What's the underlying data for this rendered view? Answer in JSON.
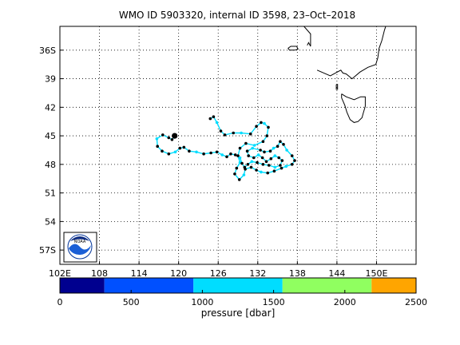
{
  "figure": {
    "title": "WMO ID 5903320, internal ID 3598, 23–Oct–2018"
  },
  "map": {
    "lon_range": [
      102,
      156
    ],
    "lat_range": [
      -58.5,
      -33.5
    ],
    "x_ticks": [
      {
        "value": 102,
        "label": "102E"
      },
      {
        "value": 108,
        "label": "108"
      },
      {
        "value": 114,
        "label": "114"
      },
      {
        "value": 120,
        "label": "120"
      },
      {
        "value": 126,
        "label": "126"
      },
      {
        "value": 132,
        "label": "132"
      },
      {
        "value": 138,
        "label": "138"
      },
      {
        "value": 144,
        "label": "144"
      },
      {
        "value": 150,
        "label": "150E"
      }
    ],
    "y_ticks": [
      {
        "value": -36,
        "label": "36S"
      },
      {
        "value": -39,
        "label": "39"
      },
      {
        "value": -42,
        "label": "42"
      },
      {
        "value": -45,
        "label": "45"
      },
      {
        "value": -48,
        "label": "48"
      },
      {
        "value": -51,
        "label": "51"
      },
      {
        "value": -54,
        "label": "54"
      },
      {
        "value": -57,
        "label": "57S"
      }
    ],
    "grid": "dotted",
    "logo_text": "NOAA"
  },
  "colorbar": {
    "label": "pressure [dbar]",
    "ticks": [
      "0",
      "500",
      "1000",
      "1500",
      "2000",
      "2500"
    ],
    "range": [
      0,
      2500
    ],
    "segments": [
      {
        "from": 0,
        "to": 312.5,
        "color": "#00008f"
      },
      {
        "from": 312.5,
        "to": 937.5,
        "color": "#0050ff"
      },
      {
        "from": 937.5,
        "to": 1562.5,
        "color": "#00ddff"
      },
      {
        "from": 1562.5,
        "to": 2187.5,
        "color": "#90ff60"
      },
      {
        "from": 2187.5,
        "to": 2500,
        "color": "#ffa500"
      }
    ]
  },
  "chart_data": {
    "type": "scatter",
    "title": "WMO ID 5903320, internal ID 3598, 23–Oct–2018",
    "xlabel": "",
    "ylabel": "",
    "xlim": [
      102,
      156
    ],
    "ylim": [
      -58.5,
      -33.5
    ],
    "track": [
      [
        124.8,
        -43.2
      ],
      [
        125.3,
        -43.0
      ],
      [
        125.8,
        -43.6
      ],
      [
        126.4,
        -44.5
      ],
      [
        127.0,
        -44.9
      ],
      [
        128.3,
        -44.7
      ],
      [
        129.5,
        -44.7
      ],
      [
        130.9,
        -44.8
      ],
      [
        131.8,
        -44.0
      ],
      [
        132.5,
        -43.6
      ],
      [
        133.0,
        -43.7
      ],
      [
        133.6,
        -44.1
      ],
      [
        133.4,
        -45.0
      ],
      [
        132.8,
        -45.6
      ],
      [
        131.5,
        -46.0
      ],
      [
        130.2,
        -45.8
      ],
      [
        129.3,
        -46.3
      ],
      [
        129.0,
        -47.1
      ],
      [
        129.3,
        -47.8
      ],
      [
        128.8,
        -48.4
      ],
      [
        128.5,
        -49.0
      ],
      [
        129.2,
        -49.6
      ],
      [
        129.9,
        -49.1
      ],
      [
        130.1,
        -48.5
      ],
      [
        131.0,
        -48.3
      ],
      [
        131.8,
        -48.6
      ],
      [
        132.5,
        -48.8
      ],
      [
        133.5,
        -48.9
      ],
      [
        134.5,
        -48.7
      ],
      [
        135.6,
        -48.4
      ],
      [
        136.3,
        -48.2
      ],
      [
        137.2,
        -48.0
      ],
      [
        137.6,
        -47.6
      ],
      [
        137.2,
        -47.1
      ],
      [
        136.4,
        -46.5
      ],
      [
        135.9,
        -45.9
      ],
      [
        135.4,
        -45.6
      ],
      [
        135.0,
        -46.1
      ],
      [
        134.4,
        -46.3
      ],
      [
        133.9,
        -46.6
      ],
      [
        133.0,
        -46.7
      ],
      [
        132.4,
        -46.5
      ],
      [
        131.2,
        -46.3
      ],
      [
        130.4,
        -46.6
      ],
      [
        130.6,
        -47.1
      ],
      [
        131.4,
        -47.3
      ],
      [
        132.1,
        -47.0
      ],
      [
        132.7,
        -47.3
      ],
      [
        133.3,
        -47.7
      ],
      [
        134.0,
        -47.4
      ],
      [
        134.6,
        -47.1
      ],
      [
        135.2,
        -47.3
      ],
      [
        135.7,
        -47.6
      ],
      [
        135.4,
        -48.1
      ],
      [
        134.6,
        -48.3
      ],
      [
        133.7,
        -48.1
      ],
      [
        132.8,
        -48.0
      ],
      [
        131.9,
        -47.8
      ],
      [
        131.1,
        -47.7
      ],
      [
        130.5,
        -48.0
      ],
      [
        130.0,
        -48.3
      ],
      [
        129.6,
        -47.9
      ],
      [
        129.3,
        -47.3
      ],
      [
        128.6,
        -47.0
      ],
      [
        127.9,
        -46.9
      ],
      [
        127.3,
        -47.2
      ],
      [
        126.6,
        -47.0
      ],
      [
        125.8,
        -46.7
      ],
      [
        124.9,
        -46.8
      ],
      [
        123.8,
        -46.9
      ],
      [
        122.7,
        -46.7
      ],
      [
        121.6,
        -46.6
      ],
      [
        120.8,
        -46.2
      ],
      [
        120.2,
        -46.3
      ],
      [
        119.5,
        -46.7
      ],
      [
        118.5,
        -46.9
      ],
      [
        117.5,
        -46.6
      ],
      [
        116.8,
        -46.1
      ],
      [
        116.7,
        -45.3
      ],
      [
        117.6,
        -44.9
      ],
      [
        118.5,
        -45.2
      ],
      [
        119.0,
        -45.4
      ],
      [
        119.4,
        -45.0
      ]
    ],
    "end_point": [
      119.4,
      -45.0
    ]
  },
  "coastlines": {
    "australia": [
      [
        139.5,
        -35.5
      ],
      [
        139.7,
        -35.2
      ],
      [
        140.0,
        -35.6
      ],
      [
        140.0,
        -34.3
      ],
      [
        139.0,
        -33.5
      ]
    ],
    "victoria": [
      [
        141.0,
        -38.1
      ],
      [
        143.0,
        -38.7
      ],
      [
        144.6,
        -38.1
      ],
      [
        144.9,
        -38.4
      ],
      [
        145.4,
        -38.5
      ],
      [
        146.3,
        -39.0
      ],
      [
        147.5,
        -38.3
      ],
      [
        148.7,
        -37.8
      ],
      [
        149.9,
        -37.5
      ],
      [
        150.2,
        -36.8
      ],
      [
        150.4,
        -35.8
      ],
      [
        150.8,
        -35.0
      ],
      [
        151.2,
        -33.9
      ],
      [
        151.4,
        -33.5
      ]
    ],
    "kangaroo_island": [
      [
        137.4,
        -35.6
      ],
      [
        137.9,
        -35.6
      ],
      [
        138.1,
        -35.9
      ],
      [
        137.6,
        -36.0
      ],
      [
        136.8,
        -36.0
      ],
      [
        136.6,
        -35.8
      ],
      [
        137.0,
        -35.6
      ],
      [
        137.4,
        -35.6
      ]
    ],
    "tasmania": [
      [
        144.7,
        -40.6
      ],
      [
        145.4,
        -40.9
      ],
      [
        146.6,
        -41.2
      ],
      [
        147.6,
        -40.9
      ],
      [
        148.3,
        -40.9
      ],
      [
        148.3,
        -41.9
      ],
      [
        148.0,
        -42.6
      ],
      [
        147.8,
        -43.1
      ],
      [
        147.2,
        -43.5
      ],
      [
        146.6,
        -43.6
      ],
      [
        146.0,
        -43.3
      ],
      [
        145.5,
        -42.5
      ],
      [
        145.2,
        -41.8
      ],
      [
        144.7,
        -41.0
      ],
      [
        144.7,
        -40.6
      ]
    ],
    "king_island": [
      [
        143.9,
        -39.6
      ],
      [
        144.1,
        -39.6
      ],
      [
        144.1,
        -40.1
      ],
      [
        143.9,
        -40.1
      ],
      [
        143.9,
        -39.6
      ]
    ]
  }
}
